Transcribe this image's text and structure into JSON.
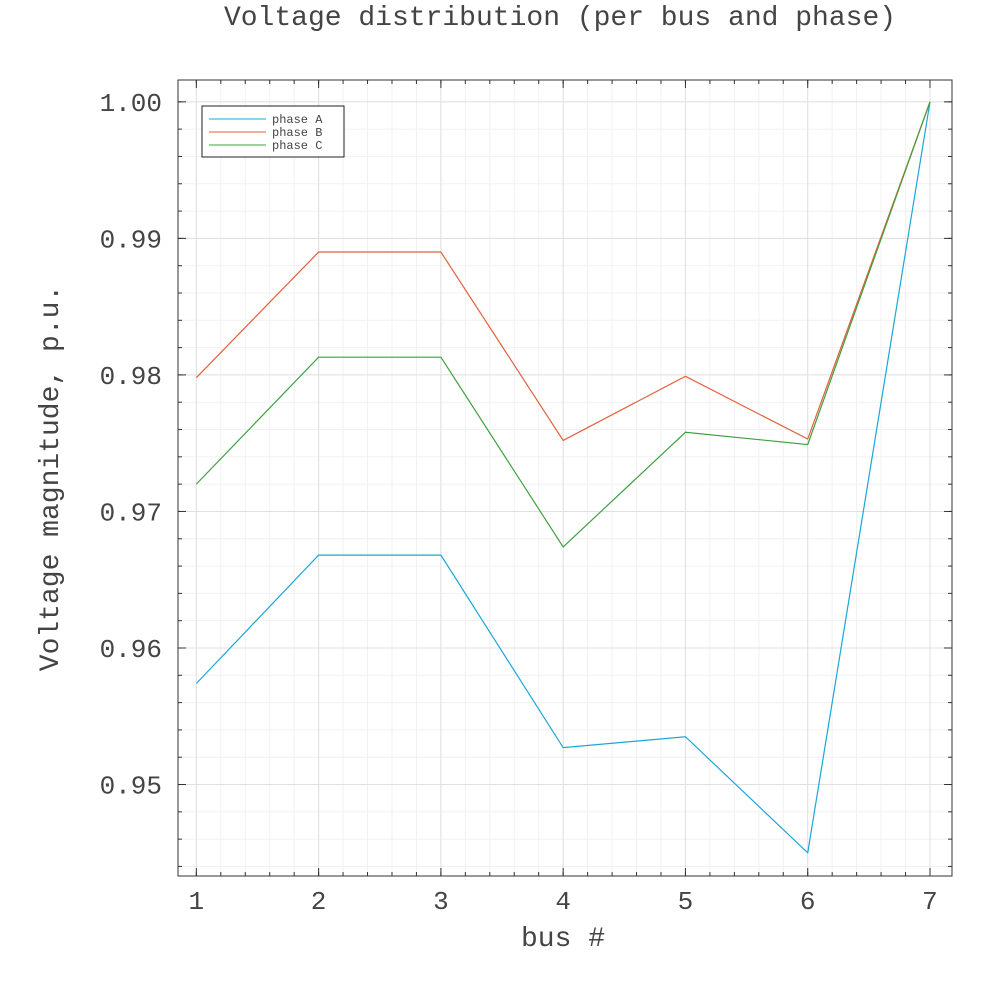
{
  "chart_data": {
    "type": "line",
    "title": "Voltage distribution (per bus and phase)",
    "xlabel": "bus #",
    "ylabel": "Voltage magnitude, p.u.",
    "x": [
      1,
      2,
      3,
      4,
      5,
      6,
      7
    ],
    "xlim": [
      0.85,
      7.18
    ],
    "ylim": [
      0.9433,
      1.0016
    ],
    "xticks": [
      1,
      2,
      3,
      4,
      5,
      6,
      7
    ],
    "xtick_labels": [
      "1",
      "2",
      "3",
      "4",
      "5",
      "6",
      "7"
    ],
    "yticks": [
      0.95,
      0.96,
      0.97,
      0.98,
      0.99,
      1.0
    ],
    "ytick_labels": [
      "0.95",
      "0.96",
      "0.97",
      "0.98",
      "0.99",
      "1.00"
    ],
    "grid": true,
    "legend_position": "top-left",
    "series": [
      {
        "name": "phase A",
        "color": "#1aa6d9",
        "values": [
          0.9574,
          0.9668,
          0.9668,
          0.9527,
          0.9535,
          0.945,
          1.0
        ]
      },
      {
        "name": "phase B",
        "color": "#e2603c",
        "values": [
          0.9798,
          0.989,
          0.989,
          0.9752,
          0.9799,
          0.9753,
          1.0
        ]
      },
      {
        "name": "phase C",
        "color": "#3fa03f",
        "values": [
          0.972,
          0.9813,
          0.9813,
          0.9674,
          0.9758,
          0.9749,
          1.0
        ]
      }
    ]
  }
}
